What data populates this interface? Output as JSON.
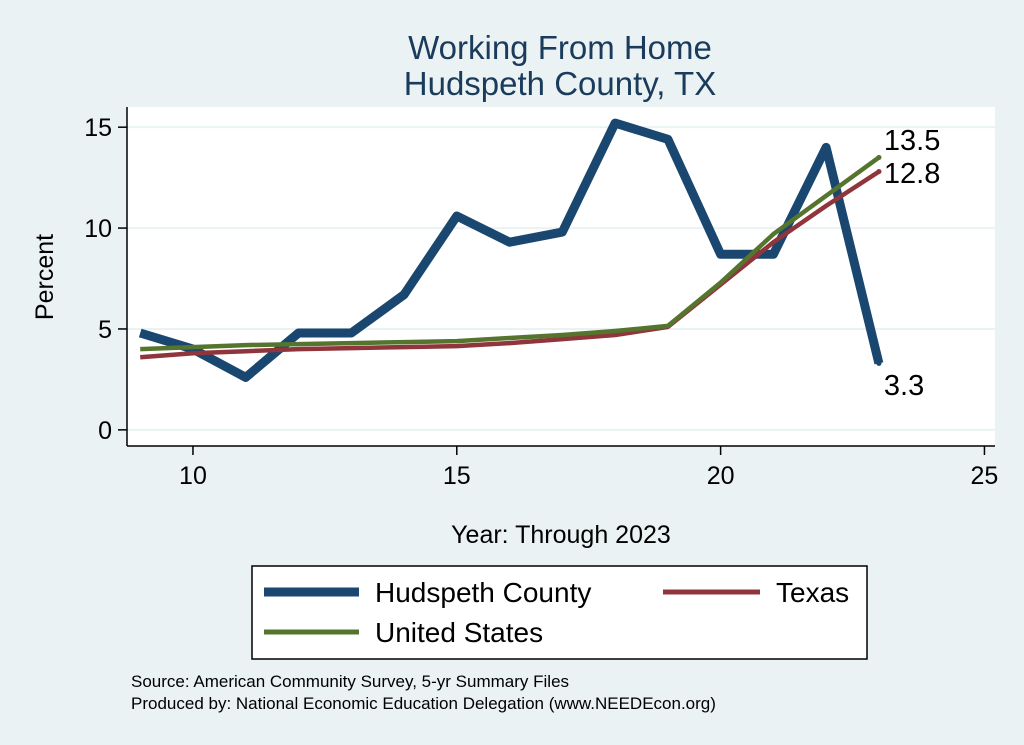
{
  "chart_data": {
    "type": "line",
    "title": "Working From Home",
    "subtitle": "Hudspeth County, TX",
    "xlabel": "Year: Through 2023",
    "ylabel": "Percent",
    "xlim": [
      8.75,
      25.2
    ],
    "ylim": [
      -0.8,
      16
    ],
    "xticks": [
      10,
      15,
      20,
      25
    ],
    "yticks": [
      0,
      5,
      10,
      15
    ],
    "grid": true,
    "legend_position": "bottom",
    "series": [
      {
        "name": "Hudspeth County",
        "color": "#1a476f",
        "x": [
          9,
          10,
          11,
          12,
          13,
          14,
          15,
          16,
          17,
          18,
          19,
          20,
          21,
          22,
          23
        ],
        "y": [
          4.8,
          4.0,
          2.6,
          4.8,
          4.8,
          6.7,
          10.6,
          9.3,
          9.8,
          15.2,
          14.4,
          8.7,
          8.7,
          14.0,
          3.3
        ],
        "end_label": "3.3"
      },
      {
        "name": "Texas",
        "color": "#90353b",
        "x": [
          9,
          10,
          11,
          12,
          13,
          14,
          15,
          16,
          17,
          18,
          19,
          20,
          21,
          22,
          23
        ],
        "y": [
          3.6,
          3.8,
          3.9,
          4.0,
          4.05,
          4.1,
          4.15,
          4.3,
          4.5,
          4.7,
          5.1,
          7.2,
          9.3,
          11.1,
          12.8
        ],
        "end_label": "12.8"
      },
      {
        "name": "United States",
        "color": "#55752f",
        "x": [
          9,
          10,
          11,
          12,
          13,
          14,
          15,
          16,
          17,
          18,
          19,
          20,
          21,
          22,
          23
        ],
        "y": [
          4.0,
          4.1,
          4.2,
          4.25,
          4.3,
          4.35,
          4.4,
          4.55,
          4.7,
          4.9,
          5.15,
          7.3,
          9.7,
          11.6,
          13.5
        ],
        "end_label": "13.5"
      }
    ],
    "notes": [
      "Source: American Community Survey, 5-yr Summary Files",
      "Produced by: National Economic Education Delegation (www.NEEDEcon.org)"
    ]
  }
}
